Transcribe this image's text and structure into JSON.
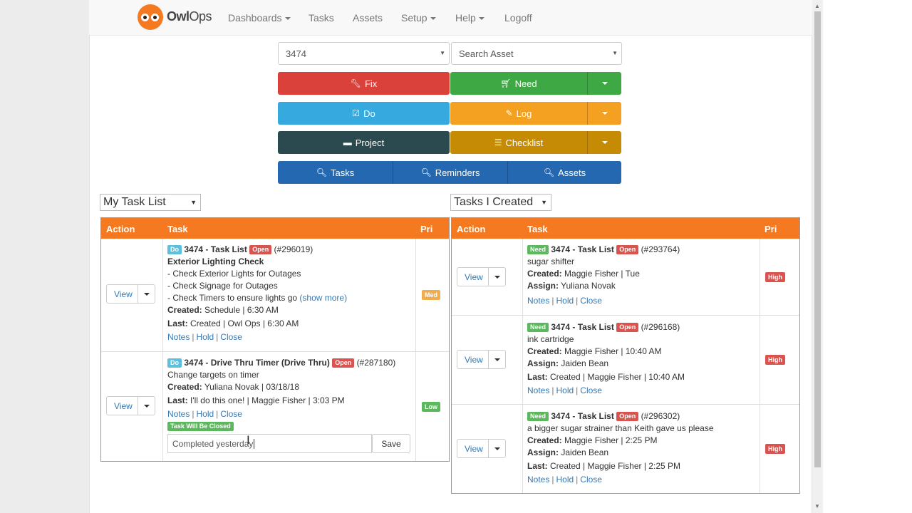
{
  "navbar": {
    "brand_bold": "Owl",
    "brand_light": "Ops",
    "items": [
      {
        "label": "Dashboards",
        "dropdown": true
      },
      {
        "label": "Tasks",
        "dropdown": false
      },
      {
        "label": "Assets",
        "dropdown": false
      },
      {
        "label": "Setup",
        "dropdown": true
      },
      {
        "label": "Help",
        "dropdown": true
      },
      {
        "label": "Logoff",
        "dropdown": false
      }
    ]
  },
  "filters": {
    "location_value": "3474",
    "asset_placeholder": "Search Asset"
  },
  "actions": {
    "fix": "Fix",
    "need": "Need",
    "do": "Do",
    "log": "Log",
    "project": "Project",
    "checklist": "Checklist",
    "tasks": "Tasks",
    "reminders": "Reminders",
    "assets": "Assets"
  },
  "colors": {
    "brand_orange": "#f47920",
    "fix": "#d9413a",
    "need": "#3ea844",
    "do": "#36a9de",
    "log": "#f4a020",
    "project": "#2a4a4f",
    "checklist": "#c58b05",
    "search": "#2368b0"
  },
  "left_list": {
    "selector": "My Task List",
    "headers": {
      "action": "Action",
      "task": "Task",
      "pri": "Pri"
    },
    "rows": [
      {
        "view": "View",
        "type": "Do",
        "title": "3474 - Task List",
        "status": "Open",
        "id": "(#296019)",
        "name": "Exterior Lighting Check",
        "lines": [
          "- Check Exterior Lights for Outages",
          "- Check Signage for Outages",
          "- Check Timers to ensure lights go"
        ],
        "show_more": "(show more)",
        "created_label": "Created:",
        "created": "Schedule | 6:30 AM",
        "last_label": "Last:",
        "last": "Created | Owl Ops | 6:30 AM",
        "links": [
          "Notes",
          "Hold",
          "Close"
        ],
        "priority": "Med"
      },
      {
        "view": "View",
        "type": "Do",
        "title": "3474 - Drive Thru Timer (Drive Thru)",
        "status": "Open",
        "id": "(#287180)",
        "name": "Change targets on timer",
        "created_label": "Created:",
        "created": "Yuliana Novak | 03/18/18",
        "last_label": "Last:",
        "last": "I'll do this one! | Maggie Fisher | 3:03 PM",
        "links": [
          "Notes",
          "Hold",
          "Close"
        ],
        "closing_badge": "Task Will Be Closed",
        "note_value": "Completed yesterday",
        "save": "Save",
        "priority": "Low"
      }
    ]
  },
  "right_list": {
    "selector": "Tasks I Created",
    "headers": {
      "action": "Action",
      "task": "Task",
      "pri": "Pri"
    },
    "rows": [
      {
        "view": "View",
        "type": "Need",
        "title": "3474 - Task List",
        "status": "Open",
        "id": "(#293764)",
        "name": "sugar shifter",
        "created_label": "Created:",
        "created": "Maggie Fisher | Tue",
        "assign_label": "Assign:",
        "assign": "Yuliana Novak",
        "links": [
          "Notes",
          "Hold",
          "Close"
        ],
        "priority": "High"
      },
      {
        "view": "View",
        "type": "Need",
        "title": "3474 - Task List",
        "status": "Open",
        "id": "(#296168)",
        "name": "ink cartridge",
        "created_label": "Created:",
        "created": "Maggie Fisher | 10:40 AM",
        "assign_label": "Assign:",
        "assign": "Jaiden Bean",
        "last_label": "Last:",
        "last": "Created | Maggie Fisher | 10:40 AM",
        "links": [
          "Notes",
          "Hold",
          "Close"
        ],
        "priority": "High"
      },
      {
        "view": "View",
        "type": "Need",
        "title": "3474 - Task List",
        "status": "Open",
        "id": "(#296302)",
        "name": "a bigger sugar strainer than Keith gave us please",
        "created_label": "Created:",
        "created": "Maggie Fisher | 2:25 PM",
        "assign_label": "Assign:",
        "assign": "Jaiden Bean",
        "last_label": "Last:",
        "last": "Created | Maggie Fisher | 2:25 PM",
        "links": [
          "Notes",
          "Hold",
          "Close"
        ],
        "priority": "High"
      }
    ]
  }
}
